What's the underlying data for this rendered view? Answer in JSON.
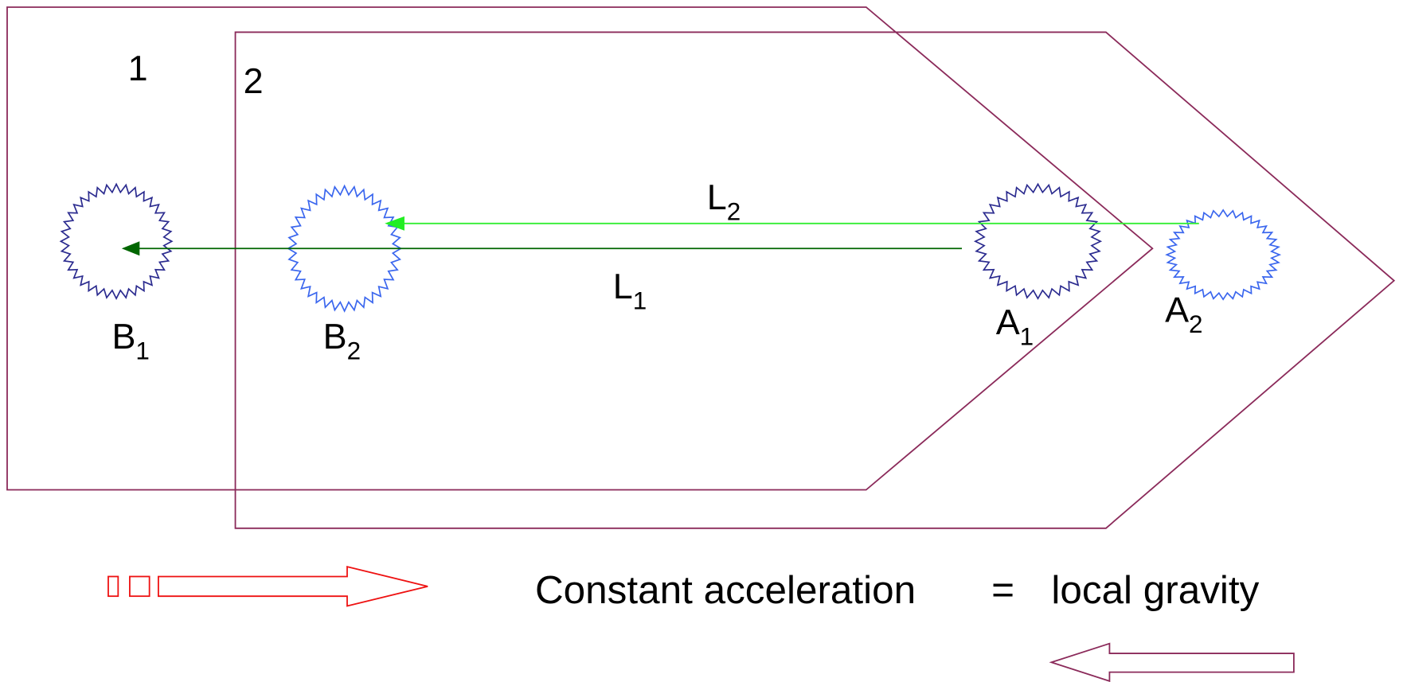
{
  "frames": [
    {
      "label": "1"
    },
    {
      "label": "2"
    }
  ],
  "lines": [
    {
      "letter": "L",
      "sub": "1"
    },
    {
      "letter": "L",
      "sub": "2"
    }
  ],
  "points": [
    {
      "letter": "B",
      "sub": "1"
    },
    {
      "letter": "B",
      "sub": "2"
    },
    {
      "letter": "A",
      "sub": "1"
    },
    {
      "letter": "A",
      "sub": "2"
    }
  ],
  "caption": {
    "left": "Constant acceleration",
    "equals": "=",
    "right": "local gravity"
  }
}
